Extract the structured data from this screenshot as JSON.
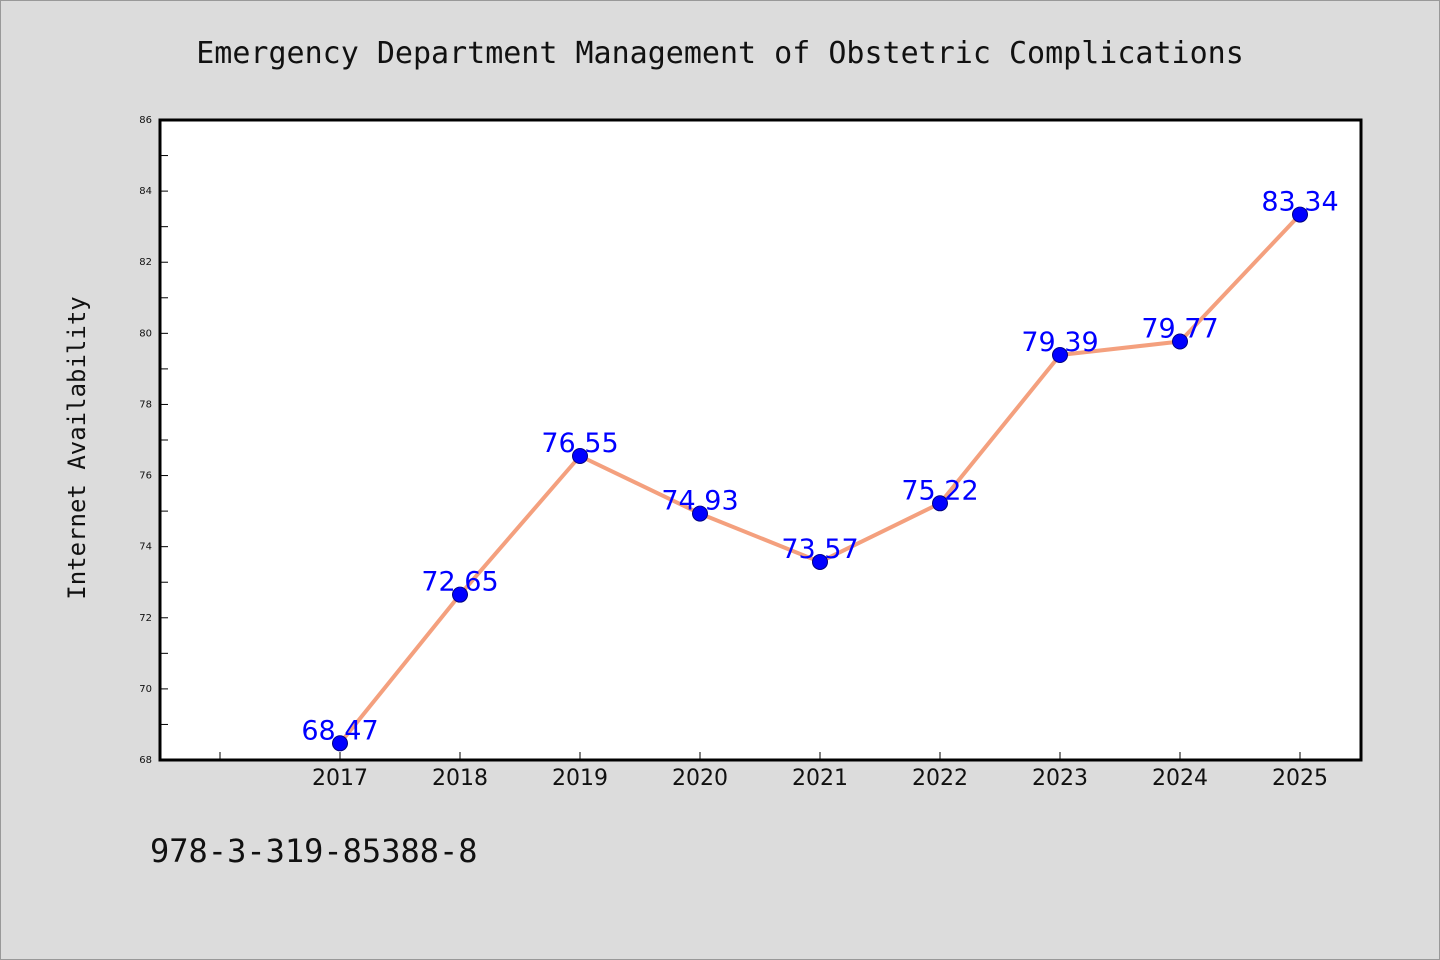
{
  "chart_data": {
    "type": "line",
    "title": "Emergency Department Management of Obstetric Complications",
    "xlabel": "",
    "ylabel": "Internet Availability",
    "categories": [
      "2017",
      "2018",
      "2019",
      "2020",
      "2021",
      "2022",
      "2023",
      "2024",
      "2025"
    ],
    "series": [
      {
        "values": [
          68.47,
          72.65,
          76.55,
          74.93,
          73.57,
          75.22,
          79.39,
          79.77,
          83.34
        ],
        "labels": [
          "68.47",
          "72.65",
          "76.55",
          "74.93",
          "73.57",
          "75.22",
          "79.39",
          "79.77",
          "83.34"
        ]
      }
    ],
    "ylim": [
      68,
      86
    ],
    "yticks": [
      "68",
      "70",
      "72",
      "74",
      "76",
      "78",
      "80",
      "82",
      "84",
      "86"
    ],
    "grid": false,
    "legend": "none",
    "colors": {
      "line": "#f4a07e",
      "marker": "#0000ff",
      "marker_edge": "#000080",
      "data_label": "#0000ff",
      "background": "#dcdcdc",
      "plot_background": "#ffffff"
    }
  },
  "caption": "978-3-319-85388-8"
}
